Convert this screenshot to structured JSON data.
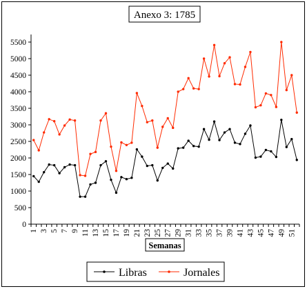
{
  "chart_data": {
    "type": "line",
    "title": "Anexo  3: 1785",
    "xlabel": "Semanas",
    "ylabel": "",
    "ylim": [
      0,
      5500
    ],
    "yticks": [
      0,
      500,
      1000,
      1500,
      2000,
      2500,
      3000,
      3500,
      4000,
      4500,
      5000,
      5500
    ],
    "x": [
      1,
      2,
      3,
      4,
      5,
      6,
      7,
      8,
      9,
      10,
      11,
      12,
      13,
      14,
      15,
      16,
      17,
      18,
      19,
      20,
      21,
      22,
      23,
      24,
      25,
      26,
      27,
      28,
      29,
      30,
      31,
      32,
      33,
      34,
      35,
      36,
      37,
      38,
      39,
      40,
      41,
      42,
      43,
      44,
      45,
      46,
      47,
      48,
      49,
      50,
      51,
      52
    ],
    "xtick_labels": [
      1,
      3,
      5,
      7,
      9,
      11,
      13,
      15,
      17,
      19,
      21,
      23,
      25,
      27,
      29,
      31,
      33,
      35,
      37,
      39,
      41,
      43,
      45,
      47,
      49,
      51
    ],
    "grid": false,
    "legend_position": "bottom",
    "series": [
      {
        "name": "Libras",
        "color": "#000000",
        "values": [
          1450,
          1280,
          1570,
          1800,
          1780,
          1540,
          1720,
          1800,
          1780,
          830,
          830,
          1200,
          1250,
          1780,
          1900,
          1340,
          950,
          1420,
          1360,
          1400,
          2260,
          2040,
          1760,
          1780,
          1320,
          1700,
          1830,
          1680,
          2290,
          2310,
          2520,
          2360,
          2340,
          2870,
          2550,
          3100,
          2540,
          2770,
          2870,
          2460,
          2420,
          2730,
          2980,
          2010,
          2040,
          2240,
          2200,
          2030,
          3150,
          2330,
          2570,
          1940
        ]
      },
      {
        "name": "Jornales",
        "color": "#ff2a00",
        "values": [
          2540,
          2230,
          2770,
          3170,
          3110,
          2710,
          2980,
          3160,
          3130,
          1480,
          1460,
          2120,
          2180,
          3130,
          3350,
          2340,
          1610,
          2470,
          2390,
          2460,
          3960,
          3570,
          3080,
          3130,
          2310,
          2940,
          3200,
          2910,
          4000,
          4080,
          4410,
          4100,
          4080,
          5000,
          4460,
          5410,
          4470,
          4860,
          5040,
          4230,
          4220,
          4750,
          5200,
          3530,
          3590,
          3950,
          3900,
          3540,
          5500,
          4050,
          4500,
          3370
        ]
      }
    ]
  }
}
